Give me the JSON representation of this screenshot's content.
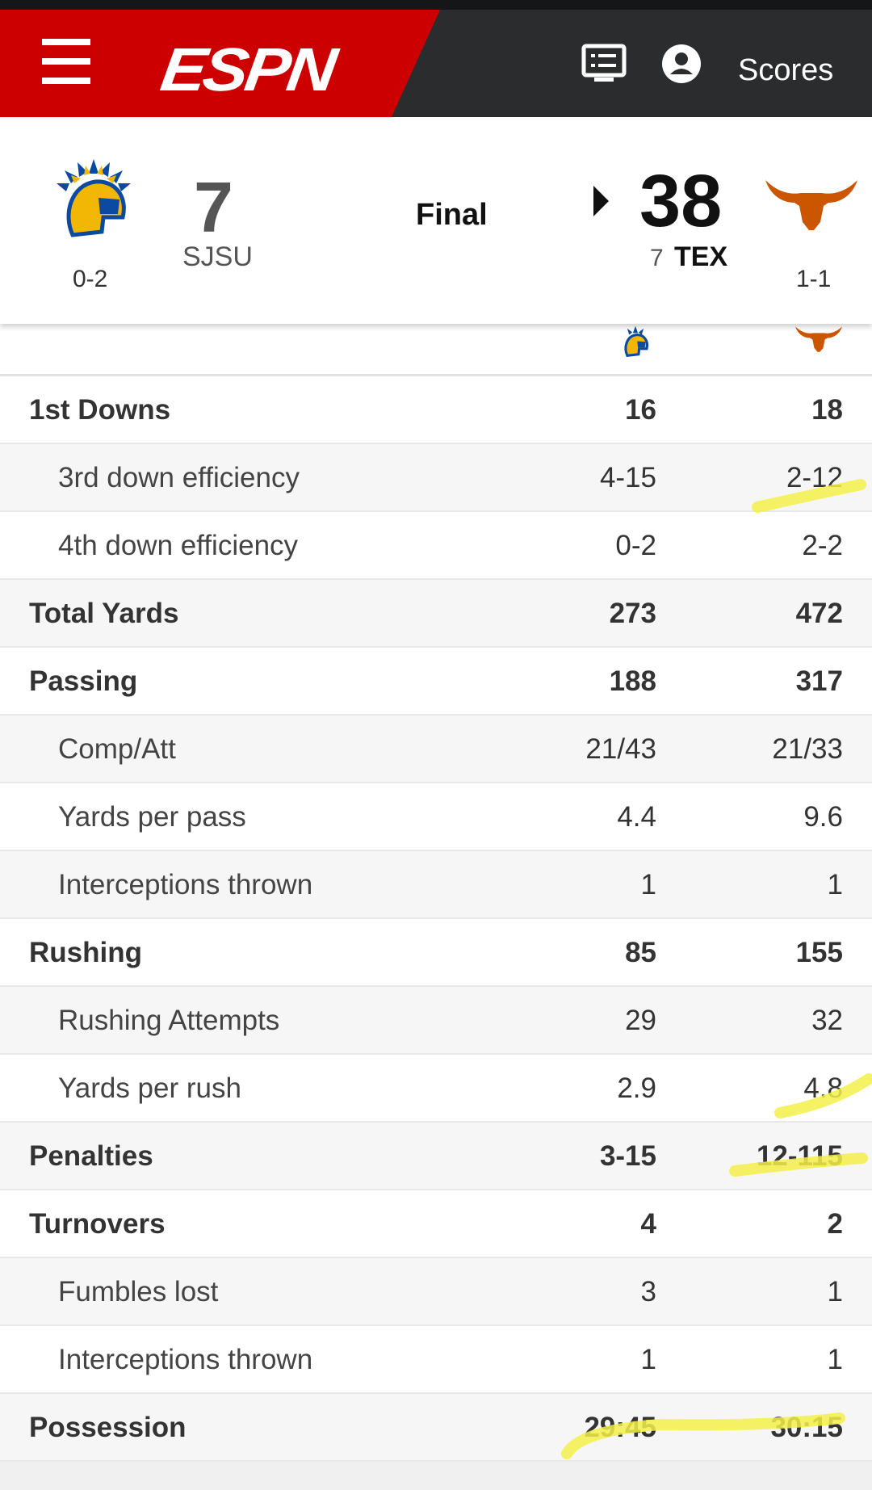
{
  "header": {
    "brand": "ESPN",
    "scores_label": "Scores",
    "icons": [
      "menu-icon",
      "tv-schedule-icon",
      "profile-icon"
    ],
    "brand_color": "#cc0000"
  },
  "scoreboard": {
    "away": {
      "abbr": "SJSU",
      "score": "7",
      "record": "0-2",
      "logo": "spartan-helmet-icon",
      "color": "#f2a900"
    },
    "home": {
      "abbr": "TEX",
      "rank": "7",
      "score": "38",
      "record": "1-1",
      "logo": "longhorn-icon",
      "color": "#cc5500"
    },
    "status": "Final",
    "winner_indicator": "home"
  },
  "stats": {
    "rows": [
      {
        "label": "1st Downs",
        "away": "16",
        "home": "18",
        "type": "main"
      },
      {
        "label": "3rd down efficiency",
        "away": "4-15",
        "home": "2-12",
        "type": "sub"
      },
      {
        "label": "4th down efficiency",
        "away": "0-2",
        "home": "2-2",
        "type": "sub"
      },
      {
        "label": "Total Yards",
        "away": "273",
        "home": "472",
        "type": "main"
      },
      {
        "label": "Passing",
        "away": "188",
        "home": "317",
        "type": "main"
      },
      {
        "label": "Comp/Att",
        "away": "21/43",
        "home": "21/33",
        "type": "sub"
      },
      {
        "label": "Yards per pass",
        "away": "4.4",
        "home": "9.6",
        "type": "sub"
      },
      {
        "label": "Interceptions thrown",
        "away": "1",
        "home": "1",
        "type": "sub"
      },
      {
        "label": "Rushing",
        "away": "85",
        "home": "155",
        "type": "main"
      },
      {
        "label": "Rushing Attempts",
        "away": "29",
        "home": "32",
        "type": "sub"
      },
      {
        "label": "Yards per rush",
        "away": "2.9",
        "home": "4.8",
        "type": "sub"
      },
      {
        "label": "Penalties",
        "away": "3-15",
        "home": "12-115",
        "type": "main"
      },
      {
        "label": "Turnovers",
        "away": "4",
        "home": "2",
        "type": "main"
      },
      {
        "label": "Fumbles lost",
        "away": "3",
        "home": "1",
        "type": "sub"
      },
      {
        "label": "Interceptions thrown",
        "away": "1",
        "home": "1",
        "type": "sub"
      },
      {
        "label": "Possession",
        "away": "29:45",
        "home": "30:15",
        "type": "main"
      }
    ]
  },
  "highlight_color": "#f5f04a"
}
